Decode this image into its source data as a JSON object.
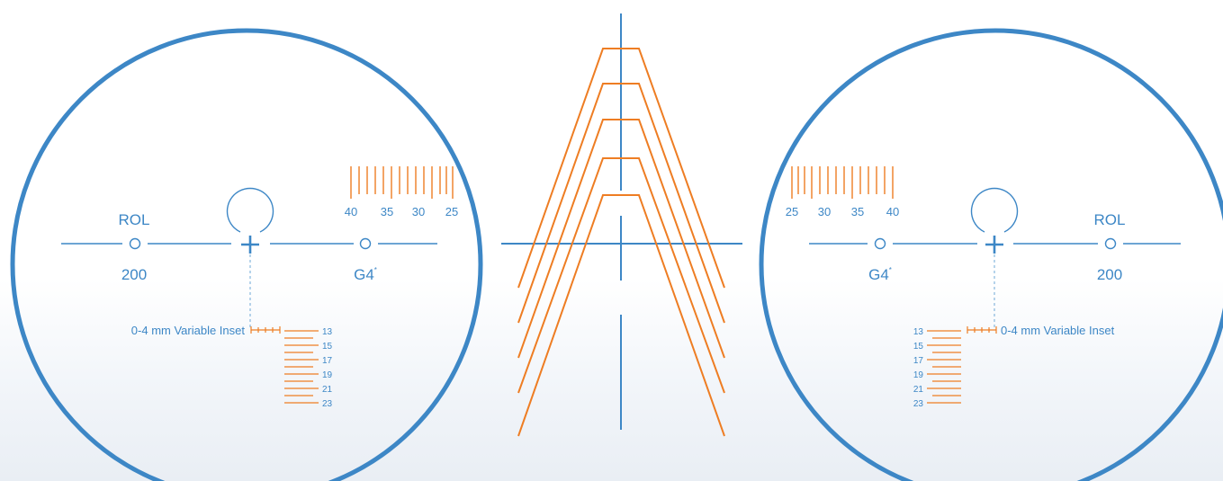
{
  "colors": {
    "blue": "#3d87c6",
    "orange": "#ee7d23",
    "dashed": "#8fbce0"
  },
  "left_lens": {
    "rol_label": "ROL",
    "rol_value": "200",
    "g4_label": "G4",
    "g4_mark": "*",
    "inset_label": "0-4 mm Variable Inset",
    "ruler_labels": [
      "40",
      "35",
      "30",
      "25"
    ],
    "height_labels": [
      "13",
      "15",
      "17",
      "19",
      "21",
      "23"
    ]
  },
  "right_lens": {
    "rol_label": "ROL",
    "rol_value": "200",
    "g4_label": "G4",
    "g4_mark": "*",
    "inset_label": "0-4 mm Variable Inset",
    "ruler_labels": [
      "25",
      "30",
      "35",
      "40"
    ],
    "height_labels": [
      "13",
      "15",
      "17",
      "19",
      "21",
      "23"
    ]
  },
  "center_diagram": {
    "icon": "frame-fitting-chevrons",
    "chevron_count": 5
  }
}
